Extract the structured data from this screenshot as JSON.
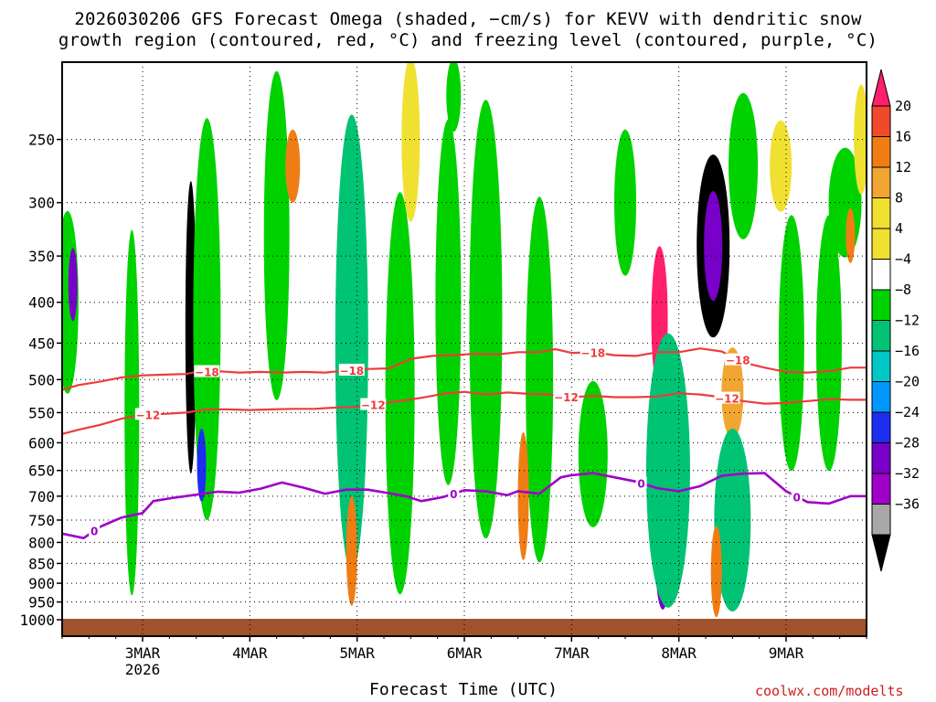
{
  "title_line1": "2026030206 GFS Forecast Omega (shaded, −cm/s) for KEVV with dendritic snow",
  "title_line2": "growth region (contoured, red, °C) and freezing level (contoured, purple, °C)",
  "credit": "coolwx.com/modelts",
  "chart_data": {
    "type": "heatmap",
    "title": "2026030206 GFS Forecast Omega (shaded, −cm/s) for KEVV with dendritic snow growth region (contoured, red, °C) and freezing level (contoured, purple, °C)",
    "xlabel": "Forecast Time (UTC)",
    "ylabel": "",
    "x_range_days": [
      2.25,
      9.75
    ],
    "x_ticks": [
      {
        "day": 3,
        "label": "3MAR",
        "sublabel": "2026"
      },
      {
        "day": 4,
        "label": "4MAR",
        "sublabel": ""
      },
      {
        "day": 5,
        "label": "5MAR",
        "sublabel": ""
      },
      {
        "day": 6,
        "label": "6MAR",
        "sublabel": ""
      },
      {
        "day": 7,
        "label": "7MAR",
        "sublabel": ""
      },
      {
        "day": 8,
        "label": "8MAR",
        "sublabel": ""
      },
      {
        "day": 9,
        "label": "9MAR",
        "sublabel": ""
      }
    ],
    "y_range_hpa": [
      1000,
      200
    ],
    "y_scale": "log-pressure",
    "y_ticks": [
      250,
      300,
      350,
      400,
      450,
      500,
      550,
      600,
      650,
      700,
      750,
      800,
      850,
      900,
      950,
      1000
    ],
    "grid": true,
    "colorbar": {
      "labels": [
        "20",
        "16",
        "12",
        "8",
        "4",
        "−4",
        "−8",
        "−12",
        "−16",
        "−20",
        "−24",
        "−28",
        "−32",
        "−36"
      ],
      "colors": [
        "#ff1f6b",
        "#f04a2a",
        "#f07d14",
        "#f0a630",
        "#f0e030",
        "#f0e030",
        "#ffffff",
        "#00d200",
        "#00c373",
        "#00c8c8",
        "#0096ff",
        "#1e2ef0",
        "#7800c8",
        "#a000c8",
        "#a8a8a8",
        "#000000"
      ]
    },
    "contours": [
      {
        "name": "-18",
        "color": "#ee3b3b",
        "label": "−18",
        "points": [
          [
            2.25,
            515
          ],
          [
            2.4,
            508
          ],
          [
            2.6,
            503
          ],
          [
            2.8,
            497
          ],
          [
            3.0,
            494
          ],
          [
            3.2,
            493
          ],
          [
            3.4,
            492
          ],
          [
            3.5,
            489
          ],
          [
            3.7,
            488
          ],
          [
            3.9,
            490
          ],
          [
            4.1,
            489
          ],
          [
            4.3,
            490
          ],
          [
            4.5,
            489
          ],
          [
            4.7,
            490
          ],
          [
            4.9,
            487
          ],
          [
            5.1,
            485
          ],
          [
            5.3,
            484
          ],
          [
            5.5,
            471
          ],
          [
            5.7,
            467
          ],
          [
            5.9,
            466
          ],
          [
            6.1,
            464
          ],
          [
            6.3,
            465
          ],
          [
            6.5,
            462
          ],
          [
            6.7,
            462
          ],
          [
            6.85,
            458
          ],
          [
            7.0,
            463
          ],
          [
            7.2,
            462
          ],
          [
            7.4,
            466
          ],
          [
            7.6,
            467
          ],
          [
            7.8,
            462
          ],
          [
            8.0,
            462
          ],
          [
            8.2,
            457
          ],
          [
            8.4,
            461
          ],
          [
            8.6,
            476
          ],
          [
            8.8,
            483
          ],
          [
            9.0,
            489
          ],
          [
            9.2,
            490
          ],
          [
            9.4,
            488
          ],
          [
            9.6,
            483
          ],
          [
            9.75,
            483
          ]
        ],
        "labels_at": [
          3.6,
          4.95,
          7.2,
          8.55
        ]
      },
      {
        "name": "-12",
        "color": "#ee3b3b",
        "label": "−12",
        "points": [
          [
            2.25,
            585
          ],
          [
            2.4,
            578
          ],
          [
            2.6,
            570
          ],
          [
            2.8,
            560
          ],
          [
            3.0,
            553
          ],
          [
            3.2,
            552
          ],
          [
            3.4,
            550
          ],
          [
            3.6,
            545
          ],
          [
            3.8,
            545
          ],
          [
            4.0,
            546
          ],
          [
            4.2,
            545
          ],
          [
            4.4,
            544
          ],
          [
            4.6,
            544
          ],
          [
            4.8,
            542
          ],
          [
            5.0,
            541
          ],
          [
            5.2,
            536
          ],
          [
            5.4,
            532
          ],
          [
            5.6,
            527
          ],
          [
            5.8,
            521
          ],
          [
            6.0,
            518
          ],
          [
            6.2,
            522
          ],
          [
            6.4,
            519
          ],
          [
            6.6,
            521
          ],
          [
            6.8,
            522
          ],
          [
            7.0,
            526
          ],
          [
            7.2,
            524
          ],
          [
            7.4,
            526
          ],
          [
            7.6,
            526
          ],
          [
            7.8,
            525
          ],
          [
            8.0,
            520
          ],
          [
            8.2,
            522
          ],
          [
            8.4,
            526
          ],
          [
            8.6,
            532
          ],
          [
            8.8,
            536
          ],
          [
            9.0,
            535
          ],
          [
            9.2,
            532
          ],
          [
            9.4,
            529
          ],
          [
            9.6,
            530
          ],
          [
            9.75,
            530
          ]
        ],
        "labels_at": [
          3.05,
          5.15,
          6.95,
          8.45
        ]
      },
      {
        "name": "0",
        "color": "#a000c8",
        "label": "0",
        "points": [
          [
            2.25,
            780
          ],
          [
            2.45,
            790
          ],
          [
            2.6,
            765
          ],
          [
            2.8,
            745
          ],
          [
            3.0,
            735
          ],
          [
            3.1,
            710
          ],
          [
            3.3,
            703
          ],
          [
            3.5,
            697
          ],
          [
            3.7,
            691
          ],
          [
            3.9,
            693
          ],
          [
            4.1,
            685
          ],
          [
            4.3,
            673
          ],
          [
            4.5,
            683
          ],
          [
            4.7,
            695
          ],
          [
            4.9,
            687
          ],
          [
            5.1,
            687
          ],
          [
            5.3,
            694
          ],
          [
            5.45,
            700
          ],
          [
            5.6,
            710
          ],
          [
            5.8,
            702
          ],
          [
            6.0,
            688
          ],
          [
            6.2,
            690
          ],
          [
            6.4,
            698
          ],
          [
            6.5,
            690
          ],
          [
            6.7,
            695
          ],
          [
            6.9,
            663
          ],
          [
            7.0,
            659
          ],
          [
            7.2,
            655
          ],
          [
            7.4,
            663
          ],
          [
            7.6,
            671
          ],
          [
            7.8,
            684
          ],
          [
            8.0,
            690
          ],
          [
            8.2,
            680
          ],
          [
            8.4,
            660
          ],
          [
            8.6,
            656
          ],
          [
            8.8,
            655
          ],
          [
            9.0,
            690
          ],
          [
            9.2,
            712
          ],
          [
            9.4,
            715
          ],
          [
            9.6,
            700
          ],
          [
            9.75,
            700
          ]
        ],
        "labels_at": [
          2.55,
          5.9,
          7.65,
          9.1
        ]
      }
    ]
  }
}
